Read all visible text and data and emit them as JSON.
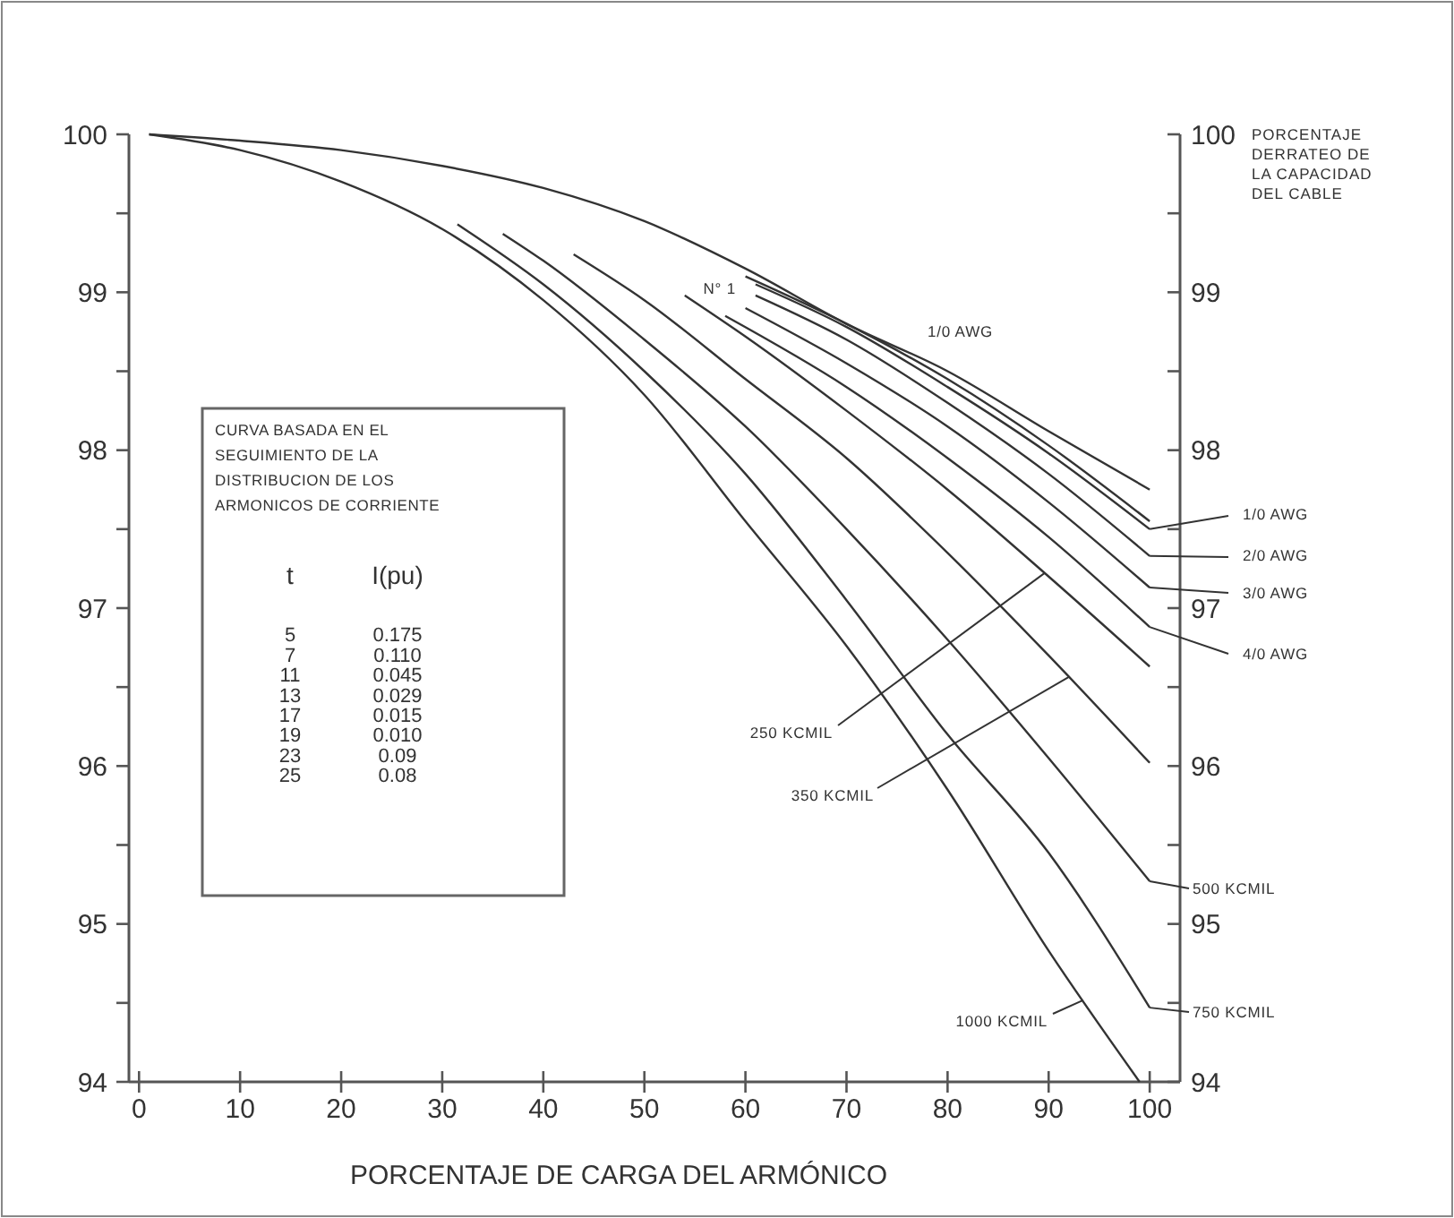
{
  "chart_data": {
    "type": "line",
    "xlabel": "PORCENTAJE DE CARGA DEL ARMÓNICO",
    "y2label": "PORCENTAJE DERRATEO DE LA CAPACIDAD DEL CABLE",
    "xlim": [
      -1,
      103
    ],
    "xticks": [
      0,
      10,
      20,
      30,
      40,
      50,
      60,
      70,
      80,
      90,
      100
    ],
    "ylim": [
      94,
      100
    ],
    "yticks": [
      94,
      {
        "value": 94.5,
        "label": null
      },
      95,
      {
        "value": 95.5,
        "label": null
      },
      96,
      {
        "value": 96.5,
        "label": null
      },
      97,
      {
        "value": 97.5,
        "label": null
      },
      98,
      {
        "value": 98.5,
        "label": null
      },
      99,
      {
        "value": 99.5,
        "label": null
      },
      100
    ],
    "y2lim": [
      94,
      100
    ],
    "y2ticks": [
      94,
      {
        "value": 94.5,
        "label": null
      },
      95,
      {
        "value": 95.5,
        "label": null
      },
      96,
      {
        "value": 96.5,
        "label": null
      },
      97,
      {
        "value": 97.5,
        "label": null
      },
      98,
      {
        "value": 98.5,
        "label": null
      },
      99,
      {
        "value": 99.5,
        "label": null
      },
      100
    ],
    "grid": false,
    "legend": "right",
    "line_style": "solid",
    "series": [
      {
        "name": "1/0 AWG",
        "color": "#333333",
        "x": [
          1,
          10,
          20,
          30,
          40,
          50,
          60,
          70,
          80,
          90,
          100
        ],
        "values": [
          100,
          99.96,
          99.9,
          99.8,
          99.66,
          99.45,
          99.15,
          98.8,
          98.5,
          98.12,
          97.75
        ]
      },
      {
        "name": "N° 1",
        "color": "#333333",
        "x": [
          60,
          70,
          80,
          90,
          100
        ],
        "values": [
          99.1,
          98.8,
          98.45,
          98.03,
          97.55
        ]
      },
      {
        "name": "1/0 AWG",
        "color": "#333333",
        "x": [
          61,
          70,
          80,
          90,
          100
        ],
        "values": [
          99.05,
          98.78,
          98.4,
          97.98,
          97.5
        ]
      },
      {
        "name": "2/0 AWG",
        "color": "#333333",
        "x": [
          61,
          70,
          80,
          90,
          100
        ],
        "values": [
          98.98,
          98.7,
          98.3,
          97.85,
          97.33
        ]
      },
      {
        "name": "3/0 AWG",
        "color": "#333333",
        "x": [
          60,
          70,
          80,
          90,
          100
        ],
        "values": [
          98.9,
          98.55,
          98.15,
          97.67,
          97.13
        ]
      },
      {
        "name": "4/0 AWG",
        "color": "#333333",
        "x": [
          58,
          70,
          80,
          90,
          100
        ],
        "values": [
          98.85,
          98.4,
          97.95,
          97.45,
          96.88
        ]
      },
      {
        "name": "250 KCMIL",
        "color": "#333333",
        "x": [
          54,
          60,
          70,
          80,
          90,
          100
        ],
        "values": [
          98.98,
          98.72,
          98.25,
          97.75,
          97.2,
          96.63
        ]
      },
      {
        "name": "350 KCMIL",
        "color": "#333333",
        "x": [
          43,
          50,
          60,
          70,
          80,
          90,
          100
        ],
        "values": [
          99.24,
          98.95,
          98.45,
          97.95,
          97.35,
          96.7,
          96.02
        ]
      },
      {
        "name": "500 KCMIL",
        "color": "#333333",
        "x": [
          36,
          40,
          50,
          60,
          70,
          80,
          90,
          100
        ],
        "values": [
          99.37,
          99.2,
          98.7,
          98.15,
          97.5,
          96.8,
          96.05,
          95.27
        ]
      },
      {
        "name": "750 KCMIL",
        "color": "#333333",
        "x": [
          31.5,
          40,
          50,
          60,
          70,
          80,
          90,
          100
        ],
        "values": [
          99.43,
          99.05,
          98.5,
          97.85,
          97.05,
          96.2,
          95.45,
          94.47
        ]
      },
      {
        "name": "1000 KCMIL",
        "color": "#333333",
        "x": [
          1,
          10,
          20,
          30,
          40,
          50,
          60,
          70,
          80,
          90,
          99
        ],
        "values": [
          100,
          99.9,
          99.7,
          99.4,
          98.95,
          98.35,
          97.55,
          96.76,
          95.85,
          94.83,
          94
        ]
      }
    ],
    "annotations": [
      "CURVA BASADA EN EL SEGUIMIENTO DE LA DISTRIBUCION DE LOS ARMONICOS DE CORRIENTE",
      "t",
      "I(pu)",
      "5",
      "0.175",
      "7",
      "0.110",
      "11",
      "0.045",
      "13",
      "0.029",
      "17",
      "0.015",
      "19",
      "0.010",
      "23",
      "0.09",
      "25",
      "0.08"
    ]
  }
}
